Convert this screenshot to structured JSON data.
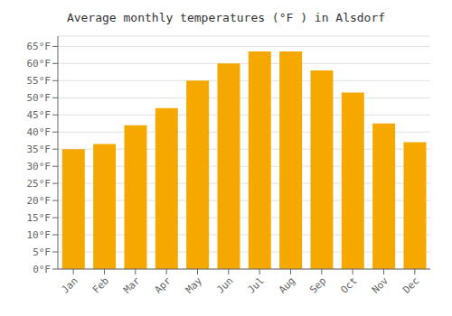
{
  "chart_data": {
    "type": "bar",
    "title": "Average monthly temperatures (°F ) in Alsdorf",
    "categories": [
      "Jan",
      "Feb",
      "Mar",
      "Apr",
      "May",
      "Jun",
      "Jul",
      "Aug",
      "Sep",
      "Oct",
      "Nov",
      "Dec"
    ],
    "values": [
      35,
      36.5,
      42,
      47,
      55,
      60,
      63.5,
      63.5,
      58,
      51.5,
      42.5,
      37
    ],
    "color": "#F5A800",
    "ylim": [
      0,
      68
    ],
    "yticks": [
      {
        "value": 0,
        "label": "0°F"
      },
      {
        "value": 5,
        "label": "5°F"
      },
      {
        "value": 10,
        "label": "10°F"
      },
      {
        "value": 15,
        "label": "15°F"
      },
      {
        "value": 20,
        "label": "20°F"
      },
      {
        "value": 25,
        "label": "25°F"
      },
      {
        "value": 30,
        "label": "30°F"
      },
      {
        "value": 35,
        "label": "35°F"
      },
      {
        "value": 40,
        "label": "40°F"
      },
      {
        "value": 45,
        "label": "45°F"
      },
      {
        "value": 50,
        "label": "50°F"
      },
      {
        "value": 55,
        "label": "55°F"
      },
      {
        "value": 60,
        "label": "60°F"
      },
      {
        "value": 65,
        "label": "65°F"
      }
    ],
    "grid": true
  }
}
